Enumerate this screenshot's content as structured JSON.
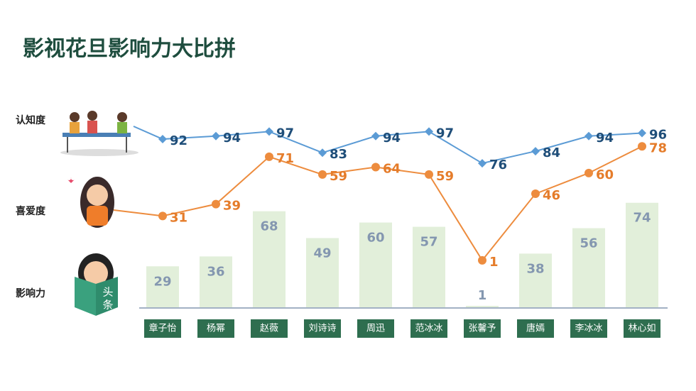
{
  "chart_data": {
    "type": "combo",
    "title": "影视花旦影响力大比拼",
    "categories": [
      "章子怡",
      "杨幂",
      "赵薇",
      "刘诗诗",
      "周迅",
      "范冰冰",
      "张馨予",
      "唐嫣",
      "李冰冰",
      "林心如"
    ],
    "series": [
      {
        "name": "认知度",
        "type": "line",
        "color": "#5b9bd5",
        "label_color": "#1f4e79",
        "values": [
          92,
          94,
          97,
          83,
          94,
          97,
          76,
          84,
          94,
          96
        ]
      },
      {
        "name": "喜爱度",
        "type": "line",
        "color": "#ed8c3e",
        "label_color": "#e57c2a",
        "values": [
          31,
          39,
          71,
          59,
          64,
          59,
          1,
          46,
          60,
          78
        ]
      },
      {
        "name": "影响力",
        "type": "bar",
        "color": "#e2efda",
        "label_color": "#8497b0",
        "values": [
          29,
          36,
          68,
          49,
          60,
          57,
          1,
          38,
          56,
          74
        ]
      }
    ]
  }
}
